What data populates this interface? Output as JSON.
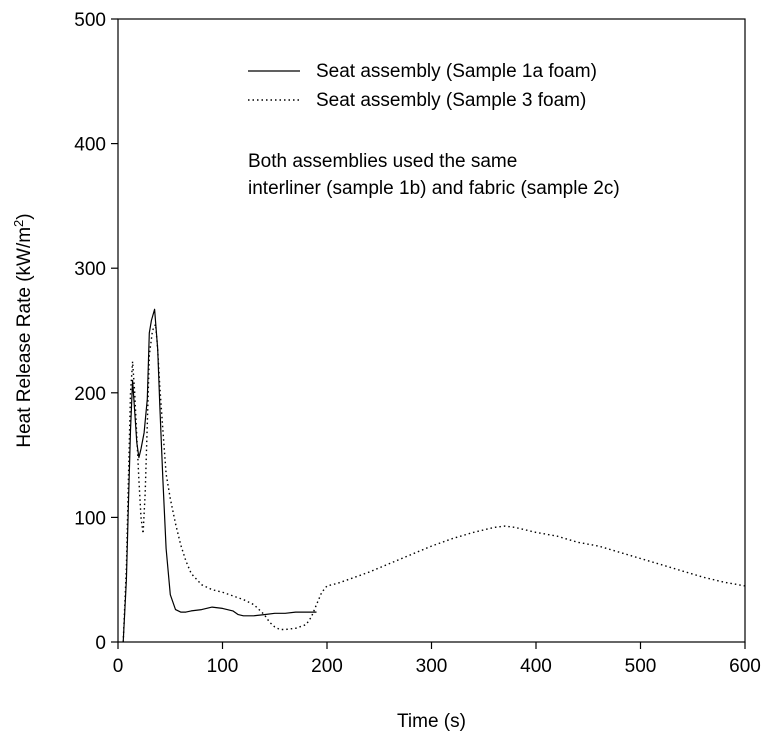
{
  "chart_data": {
    "type": "line",
    "xlabel": "Time (s)",
    "ylabel": "Heat Release Rate (kW/m",
    "ylabel_sup": "2",
    "ylabel_end": ")",
    "xlim": [
      0,
      600
    ],
    "ylim": [
      0,
      500
    ],
    "xticks": [
      "0",
      "100",
      "200",
      "300",
      "400",
      "500",
      "600"
    ],
    "yticks": [
      "0",
      "100",
      "200",
      "300",
      "400",
      "500"
    ],
    "grid": false,
    "legend_position": "top-right",
    "annotation": [
      "Both assemblies used the same",
      "interliner (sample 1b) and fabric (sample 2c)"
    ],
    "series": [
      {
        "name": "Seat assembly (Sample 1a foam)",
        "style": "solid",
        "color": "#000000",
        "x": [
          5,
          8,
          10,
          12,
          14,
          16,
          18,
          20,
          22,
          25,
          28,
          30,
          32,
          35,
          38,
          40,
          43,
          46,
          50,
          55,
          60,
          65,
          70,
          80,
          90,
          100,
          110,
          115,
          120,
          130,
          140,
          150,
          160,
          170,
          180,
          190
        ],
        "y": [
          0,
          50,
          110,
          170,
          210,
          185,
          160,
          148,
          155,
          168,
          195,
          248,
          258,
          267,
          235,
          190,
          130,
          75,
          38,
          26,
          24,
          24,
          25,
          26,
          28,
          27,
          25,
          22,
          21,
          21,
          22,
          23,
          23,
          24,
          24,
          24
        ]
      },
      {
        "name": "Seat assembly (Sample 3 foam)",
        "style": "dotted",
        "color": "#000000",
        "x": [
          5,
          8,
          10,
          12,
          14,
          16,
          18,
          20,
          22,
          24,
          26,
          28,
          30,
          33,
          36,
          38,
          40,
          43,
          46,
          50,
          55,
          60,
          65,
          70,
          80,
          90,
          100,
          110,
          120,
          130,
          140,
          145,
          150,
          155,
          160,
          170,
          180,
          185,
          190,
          195,
          200,
          210,
          220,
          240,
          260,
          280,
          300,
          320,
          340,
          360,
          370,
          380,
          400,
          420,
          440,
          460,
          480,
          500,
          520,
          540,
          560,
          580,
          600
        ],
        "y": [
          0,
          60,
          130,
          200,
          225,
          200,
          165,
          130,
          100,
          87,
          120,
          175,
          230,
          250,
          255,
          235,
          205,
          170,
          135,
          115,
          95,
          78,
          65,
          55,
          46,
          42,
          40,
          37,
          34,
          30,
          22,
          16,
          12,
          10,
          10,
          11,
          14,
          20,
          30,
          40,
          45,
          47,
          50,
          56,
          63,
          70,
          77,
          83,
          88,
          92,
          93,
          92,
          88,
          85,
          80,
          77,
          72,
          67,
          62,
          57,
          52,
          48,
          45
        ]
      }
    ]
  }
}
